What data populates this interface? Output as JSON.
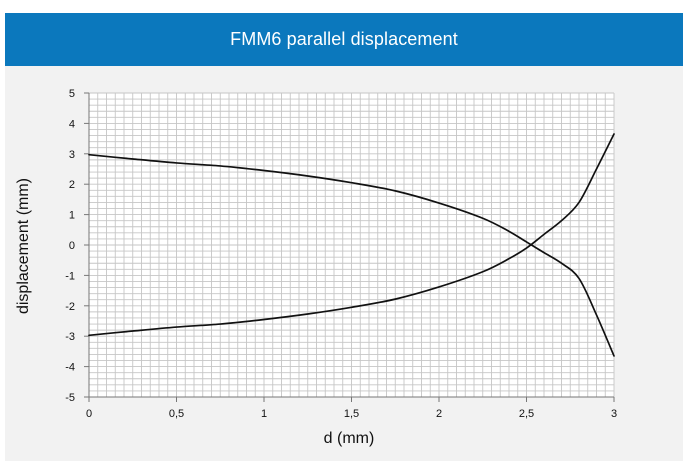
{
  "header": {
    "title": "FMM6 parallel displacement",
    "color": "#0b78bd"
  },
  "chart_data": {
    "type": "line",
    "title": "FMM6 parallel displacement",
    "xlabel": "d (mm)",
    "ylabel": "displacement (mm)",
    "xlim": [
      0,
      3
    ],
    "ylim": [
      -5,
      5
    ],
    "x_ticks": [
      "0",
      "0,5",
      "1",
      "1,5",
      "2",
      "2,5",
      "3"
    ],
    "y_ticks": [
      "5",
      "4",
      "3",
      "2",
      "1",
      "0",
      "-1",
      "-2",
      "-3",
      "-4",
      "-5"
    ],
    "grid": true,
    "legend": "none",
    "series": [
      {
        "color": "#111111",
        "x": [
          0,
          0.25,
          0.5,
          0.75,
          1.0,
          1.25,
          1.5,
          1.75,
          2.0,
          2.25,
          2.4,
          2.5,
          2.6,
          2.7,
          2.8,
          2.9,
          3.0
        ],
        "y": [
          2.97,
          2.83,
          2.7,
          2.6,
          2.45,
          2.27,
          2.05,
          1.78,
          1.38,
          0.88,
          0.45,
          0.1,
          -0.25,
          -0.6,
          -1.1,
          -2.3,
          -3.65
        ]
      },
      {
        "color": "#111111",
        "x": [
          0,
          0.25,
          0.5,
          0.75,
          1.0,
          1.25,
          1.5,
          1.75,
          2.0,
          2.25,
          2.4,
          2.5,
          2.6,
          2.7,
          2.8,
          2.9,
          3.0
        ],
        "y": [
          -2.97,
          -2.83,
          -2.7,
          -2.6,
          -2.45,
          -2.27,
          -2.05,
          -1.78,
          -1.38,
          -0.88,
          -0.45,
          -0.1,
          0.35,
          0.8,
          1.4,
          2.5,
          3.65
        ]
      }
    ]
  }
}
